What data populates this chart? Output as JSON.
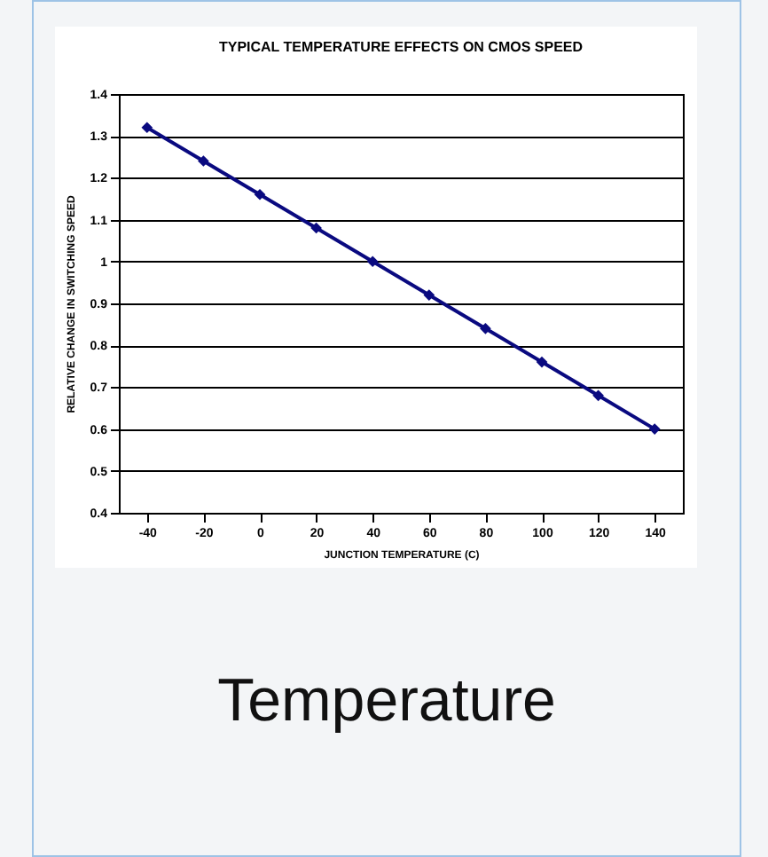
{
  "chart_data": {
    "type": "line",
    "title": "TYPICAL TEMPERATURE EFFECTS ON CMOS SPEED",
    "xlabel": "JUNCTION TEMPERATURE (C)",
    "ylabel": "RELATIVE CHANGE IN SWITCHING SPEED",
    "x": [
      -40,
      -20,
      0,
      20,
      40,
      60,
      80,
      100,
      120,
      140
    ],
    "series": [
      {
        "color": "#0a0a80",
        "values": [
          1.32,
          1.24,
          1.16,
          1.08,
          1.0,
          0.92,
          0.84,
          0.76,
          0.68,
          0.6
        ]
      }
    ],
    "xlim": [
      -50,
      150
    ],
    "xticks": [
      -40,
      -20,
      0,
      20,
      40,
      60,
      80,
      100,
      120,
      140
    ],
    "ylim": [
      0.4,
      1.4
    ],
    "yticks": [
      0.4,
      0.5,
      0.6,
      0.7,
      0.8,
      0.9,
      1,
      1.1,
      1.2,
      1.3,
      1.4
    ],
    "grid": "y",
    "marker": "diamond",
    "line_style": "solid",
    "legend": false,
    "annotations": [
      "Temperature"
    ]
  }
}
